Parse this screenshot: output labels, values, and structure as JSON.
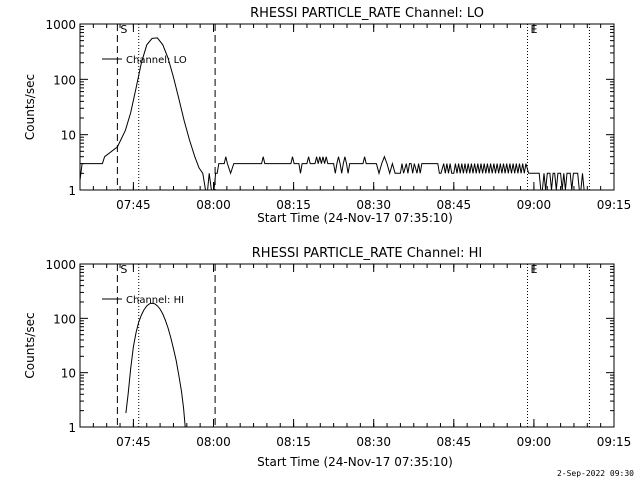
{
  "footer": {
    "stamp": "2-Sep-2022 09:30"
  },
  "chart_data": [
    {
      "type": "line",
      "title": "RHESSI PARTICLE_RATE Channel: LO",
      "xlabel": "Start Time (24-Nov-17 07:35:10)",
      "ylabel": "Counts/sec",
      "yscale": "log",
      "ylim": [
        1,
        1000
      ],
      "xlim_min": [
        0,
        100
      ],
      "x_ticks": [
        {
          "v": 10,
          "label": "07:45"
        },
        {
          "v": 25,
          "label": "08:00"
        },
        {
          "v": 40,
          "label": "08:15"
        },
        {
          "v": 55,
          "label": "08:30"
        },
        {
          "v": 70,
          "label": "08:45"
        },
        {
          "v": 85,
          "label": "09:00"
        },
        {
          "v": 100,
          "label": "09:15"
        }
      ],
      "y_ticks": [
        {
          "v": 1,
          "label": "1"
        },
        {
          "v": 10,
          "label": "10"
        },
        {
          "v": 100,
          "label": "100"
        },
        {
          "v": 1000,
          "label": "1000"
        }
      ],
      "vlines": [
        {
          "x": 7,
          "style": "dashed",
          "label": "S"
        },
        {
          "x": 11,
          "style": "dotted",
          "label": ""
        },
        {
          "x": 25.3,
          "style": "dashed",
          "label": ""
        },
        {
          "x": 83.8,
          "style": "dotted",
          "label": "E"
        },
        {
          "x": 95.4,
          "style": "dotted",
          "label": ""
        }
      ],
      "legend": {
        "entry": "Channel: LO",
        "position": "top-left"
      },
      "series": [
        {
          "values": [
            [
              0,
              1.5
            ],
            [
              0.4,
              3
            ],
            [
              4.2,
              3
            ],
            [
              4.6,
              4
            ],
            [
              7,
              6
            ],
            [
              8.5,
              12
            ],
            [
              9.5,
              25
            ],
            [
              10.5,
              70
            ],
            [
              11.5,
              200
            ],
            [
              12.5,
              420
            ],
            [
              13.5,
              550
            ],
            [
              14.5,
              560
            ],
            [
              15.5,
              420
            ],
            [
              16.5,
              240
            ],
            [
              17.5,
              110
            ],
            [
              18.5,
              45
            ],
            [
              19.5,
              18
            ],
            [
              20.5,
              8
            ],
            [
              21.5,
              4
            ],
            [
              22.3,
              2.5
            ],
            [
              23,
              2
            ],
            [
              23.5,
              1
            ],
            [
              23.9,
              1
            ],
            [
              24.2,
              2
            ],
            [
              24.6,
              1
            ],
            [
              25.1,
              1
            ],
            [
              25.4,
              2
            ],
            [
              25.7,
              2
            ],
            [
              26,
              3
            ],
            [
              27,
              3
            ],
            [
              27.3,
              4
            ],
            [
              27.6,
              3
            ],
            [
              28.2,
              2
            ],
            [
              28.8,
              3
            ],
            [
              30,
              3
            ],
            [
              34,
              3
            ],
            [
              34.3,
              4
            ],
            [
              34.6,
              3
            ],
            [
              38,
              3
            ],
            [
              39.5,
              3
            ],
            [
              39.8,
              4
            ],
            [
              40.1,
              3
            ],
            [
              41,
              3
            ],
            [
              41.3,
              2
            ],
            [
              41.6,
              3
            ],
            [
              42.5,
              3
            ],
            [
              42.8,
              4
            ],
            [
              43.1,
              3
            ],
            [
              44,
              3
            ],
            [
              44.3,
              4
            ],
            [
              44.6,
              3
            ],
            [
              44.9,
              4
            ],
            [
              45.2,
              3
            ],
            [
              45.5,
              4
            ],
            [
              45.8,
              3
            ],
            [
              46.1,
              4
            ],
            [
              46.4,
              3
            ],
            [
              47.5,
              3
            ],
            [
              47.8,
              2
            ],
            [
              48.1,
              3
            ],
            [
              48.4,
              4
            ],
            [
              48.7,
              3
            ],
            [
              49,
              2
            ],
            [
              49.3,
              3
            ],
            [
              49.6,
              4
            ],
            [
              49.9,
              3
            ],
            [
              50.2,
              2
            ],
            [
              50.5,
              3
            ],
            [
              53,
              3
            ],
            [
              53.3,
              4
            ],
            [
              53.6,
              3
            ],
            [
              55,
              3
            ],
            [
              55.5,
              3
            ],
            [
              56,
              2
            ],
            [
              56.5,
              3
            ],
            [
              57,
              4
            ],
            [
              57.5,
              3
            ],
            [
              58,
              2
            ],
            [
              58.5,
              3
            ],
            [
              59,
              2
            ],
            [
              60,
              2
            ],
            [
              60.3,
              3
            ],
            [
              60.6,
              2
            ],
            [
              61.1,
              3
            ],
            [
              61.4,
              2
            ],
            [
              61.7,
              3
            ],
            [
              62,
              3
            ],
            [
              62.3,
              2
            ],
            [
              62.6,
              3
            ],
            [
              63.1,
              2
            ],
            [
              63.4,
              3
            ],
            [
              63.7,
              2
            ],
            [
              64,
              3
            ],
            [
              67,
              3
            ],
            [
              67.3,
              2
            ],
            [
              67.6,
              2
            ],
            [
              68.1,
              3
            ],
            [
              68.4,
              2
            ],
            [
              68.7,
              3
            ],
            [
              69,
              2
            ],
            [
              69.3,
              3
            ],
            [
              69.6,
              2
            ],
            [
              70,
              2
            ],
            [
              70.3,
              3
            ],
            [
              70.6,
              2
            ],
            [
              70.9,
              3
            ],
            [
              71.2,
              2
            ],
            [
              71.5,
              3
            ],
            [
              71.8,
              2
            ],
            [
              72.1,
              3
            ],
            [
              72.4,
              2
            ],
            [
              72.7,
              3
            ],
            [
              73,
              2
            ],
            [
              73.3,
              3
            ],
            [
              73.6,
              2
            ],
            [
              73.9,
              3
            ],
            [
              74.2,
              2
            ],
            [
              74.5,
              3
            ],
            [
              74.8,
              2
            ],
            [
              75.1,
              3
            ],
            [
              75.4,
              2
            ],
            [
              75.7,
              3
            ],
            [
              76,
              2
            ],
            [
              76.3,
              3
            ],
            [
              76.6,
              2
            ],
            [
              76.9,
              3
            ],
            [
              77.2,
              2
            ],
            [
              77.5,
              3
            ],
            [
              77.8,
              2
            ],
            [
              78.1,
              3
            ],
            [
              78.4,
              2
            ],
            [
              78.7,
              3
            ],
            [
              79,
              2
            ],
            [
              79.3,
              3
            ],
            [
              79.6,
              2
            ],
            [
              79.9,
              3
            ],
            [
              80.2,
              2
            ],
            [
              80.5,
              3
            ],
            [
              80.8,
              2
            ],
            [
              81.1,
              3
            ],
            [
              81.4,
              2
            ],
            [
              81.7,
              3
            ],
            [
              82,
              2
            ],
            [
              82.3,
              3
            ],
            [
              82.6,
              2
            ],
            [
              82.9,
              3
            ],
            [
              83.2,
              2
            ],
            [
              83.5,
              3
            ],
            [
              84,
              2
            ],
            [
              85.5,
              2
            ],
            [
              86,
              2
            ],
            [
              86.3,
              1
            ],
            [
              86.6,
              1
            ],
            [
              86.9,
              2
            ],
            [
              87.2,
              1
            ],
            [
              87.5,
              2
            ],
            [
              88,
              2
            ],
            [
              88.3,
              1
            ],
            [
              88.6,
              2
            ],
            [
              88.9,
              2
            ],
            [
              89.2,
              1
            ],
            [
              89.5,
              2
            ],
            [
              90,
              2
            ],
            [
              90.3,
              1
            ],
            [
              90.6,
              2
            ],
            [
              90.9,
              1
            ],
            [
              91.2,
              2
            ],
            [
              91.8,
              2
            ],
            [
              92.1,
              1
            ],
            [
              92.4,
              2
            ],
            [
              93.2,
              2
            ],
            [
              93.5,
              1
            ],
            [
              93.8,
              1
            ],
            [
              94.1,
              2
            ],
            [
              94.4,
              1
            ],
            [
              94.8,
              1
            ]
          ]
        }
      ]
    },
    {
      "type": "line",
      "title": "RHESSI PARTICLE_RATE Channel: HI",
      "xlabel": "Start Time (24-Nov-17 07:35:10)",
      "ylabel": "Counts/sec",
      "yscale": "log",
      "ylim": [
        1,
        1000
      ],
      "xlim_min": [
        0,
        100
      ],
      "x_ticks": [
        {
          "v": 10,
          "label": "07:45"
        },
        {
          "v": 25,
          "label": "08:00"
        },
        {
          "v": 40,
          "label": "08:15"
        },
        {
          "v": 55,
          "label": "08:30"
        },
        {
          "v": 70,
          "label": "08:45"
        },
        {
          "v": 85,
          "label": "09:00"
        },
        {
          "v": 100,
          "label": "09:15"
        }
      ],
      "y_ticks": [
        {
          "v": 1,
          "label": "1"
        },
        {
          "v": 10,
          "label": "10"
        },
        {
          "v": 100,
          "label": "100"
        },
        {
          "v": 1000,
          "label": "1000"
        }
      ],
      "vlines": [
        {
          "x": 7,
          "style": "dashed",
          "label": "S"
        },
        {
          "x": 11,
          "style": "dotted",
          "label": ""
        },
        {
          "x": 25.3,
          "style": "dashed",
          "label": ""
        },
        {
          "x": 83.8,
          "style": "dotted",
          "label": "E"
        },
        {
          "x": 95.4,
          "style": "dotted",
          "label": ""
        }
      ],
      "legend": {
        "entry": "Channel: HI",
        "position": "top-left"
      },
      "series": [
        {
          "values": [
            [
              8.6,
              1.8
            ],
            [
              9,
              4
            ],
            [
              9.5,
              12
            ],
            [
              10,
              30
            ],
            [
              10.5,
              55
            ],
            [
              11,
              85
            ],
            [
              11.5,
              115
            ],
            [
              12,
              145
            ],
            [
              12.5,
              170
            ],
            [
              13,
              185
            ],
            [
              13.5,
              190
            ],
            [
              14,
              185
            ],
            [
              14.5,
              170
            ],
            [
              15,
              148
            ],
            [
              15.5,
              120
            ],
            [
              16,
              92
            ],
            [
              16.5,
              66
            ],
            [
              17,
              44
            ],
            [
              17.5,
              28
            ],
            [
              18,
              17
            ],
            [
              18.5,
              9
            ],
            [
              19,
              4.5
            ],
            [
              19.4,
              2.2
            ],
            [
              19.7,
              1
            ]
          ]
        }
      ]
    }
  ]
}
